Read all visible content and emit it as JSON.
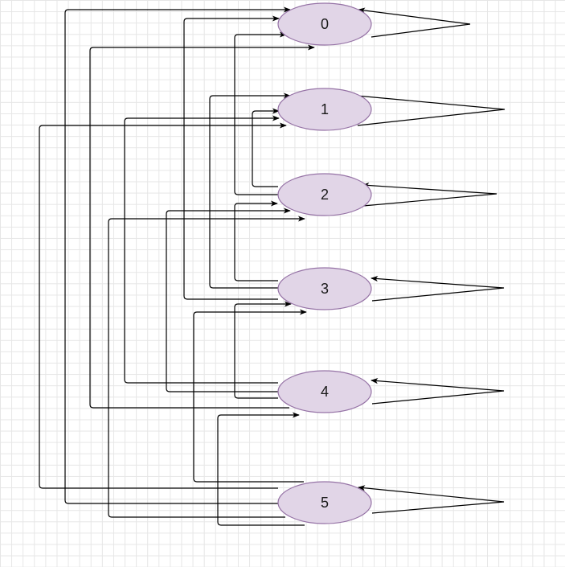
{
  "diagram": {
    "node_fill": "#e1d5e7",
    "node_stroke": "#9673a6",
    "edge_color": "#000000",
    "nodes": [
      {
        "id": "0",
        "label": "0"
      },
      {
        "id": "1",
        "label": "1"
      },
      {
        "id": "2",
        "label": "2"
      },
      {
        "id": "3",
        "label": "3"
      },
      {
        "id": "4",
        "label": "4"
      },
      {
        "id": "5",
        "label": "5"
      }
    ],
    "edges": [
      {
        "from": "0",
        "to": "0"
      },
      {
        "from": "1",
        "to": "1"
      },
      {
        "from": "2",
        "to": "2"
      },
      {
        "from": "3",
        "to": "3"
      },
      {
        "from": "4",
        "to": "4"
      },
      {
        "from": "5",
        "to": "5"
      },
      {
        "from": "2",
        "to": "0"
      },
      {
        "from": "2",
        "to": "1"
      },
      {
        "from": "3",
        "to": "0"
      },
      {
        "from": "3",
        "to": "1"
      },
      {
        "from": "3",
        "to": "2"
      },
      {
        "from": "4",
        "to": "0"
      },
      {
        "from": "4",
        "to": "1"
      },
      {
        "from": "4",
        "to": "2"
      },
      {
        "from": "4",
        "to": "3"
      },
      {
        "from": "5",
        "to": "0"
      },
      {
        "from": "5",
        "to": "1"
      },
      {
        "from": "5",
        "to": "2"
      },
      {
        "from": "5",
        "to": "3"
      },
      {
        "from": "5",
        "to": "4"
      }
    ]
  }
}
